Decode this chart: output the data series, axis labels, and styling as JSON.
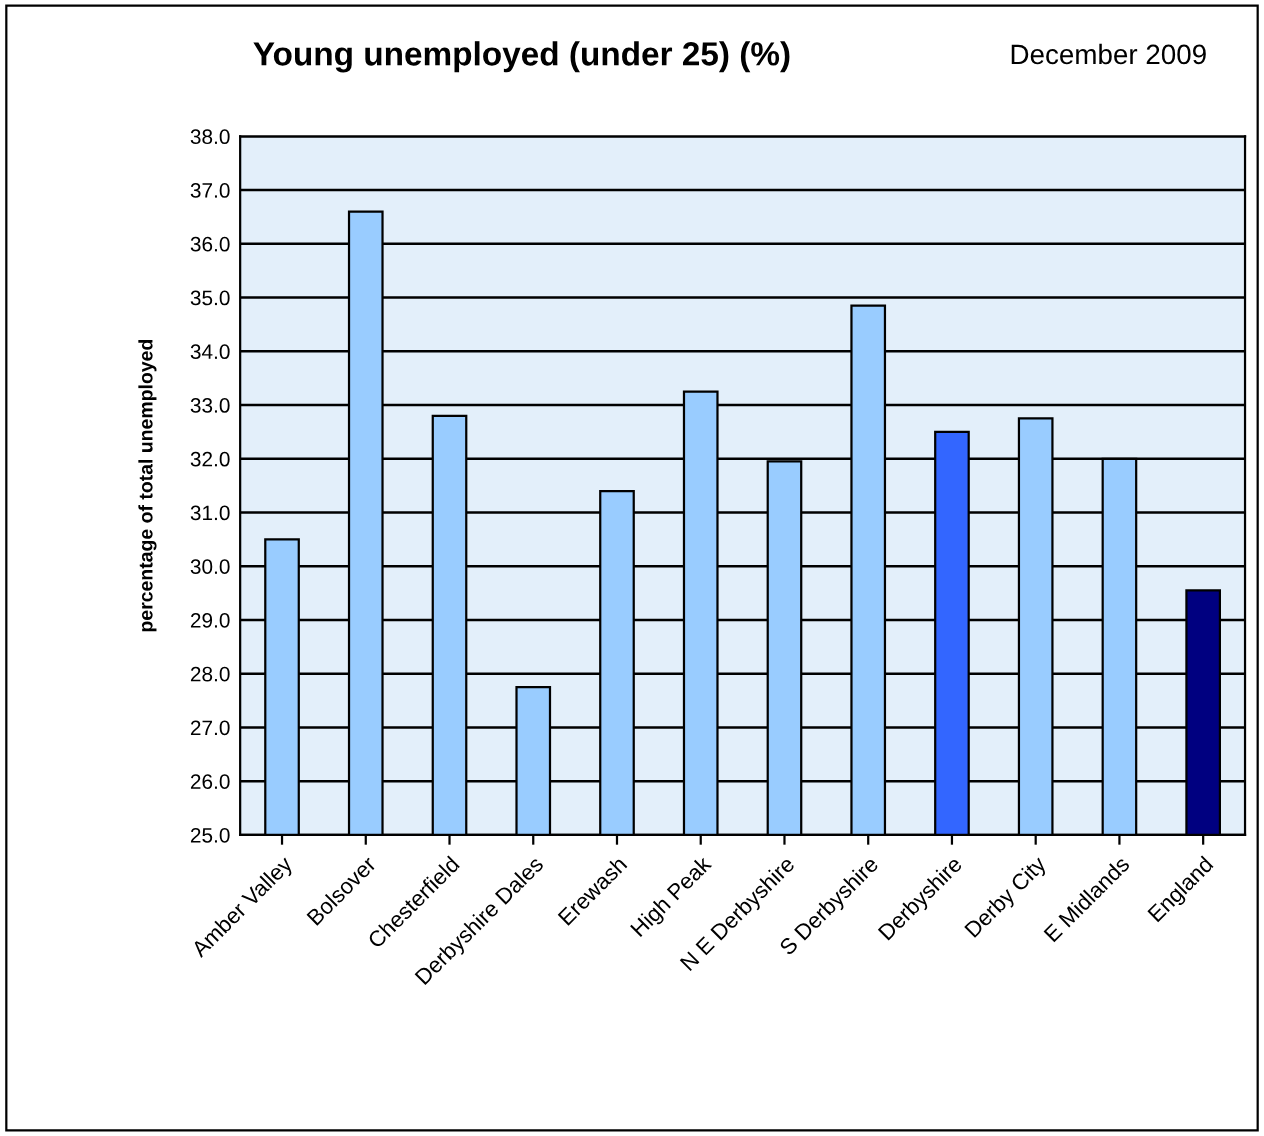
{
  "chart_data": {
    "type": "bar",
    "title": "Young unemployed (under 25) (%)",
    "subtitle": "December 2009",
    "ylabel": "percentage of total unemployed",
    "categories": [
      "Amber Valley",
      "Bolsover",
      "Chesterfield",
      "Derbyshire Dales",
      "Erewash",
      "High Peak",
      "N E Derbyshire",
      "S Derbyshire",
      "Derbyshire",
      "Derby City",
      "E Midlands",
      "England"
    ],
    "values": [
      30.5,
      36.6,
      32.8,
      27.75,
      31.4,
      33.25,
      31.95,
      34.85,
      32.5,
      32.75,
      32.0,
      29.55
    ],
    "colors": [
      "#99ccff",
      "#99ccff",
      "#99ccff",
      "#99ccff",
      "#99ccff",
      "#99ccff",
      "#99ccff",
      "#99ccff",
      "#3366ff",
      "#99ccff",
      "#99ccff",
      "#000080"
    ],
    "ylim": [
      25,
      38
    ],
    "yticks": [
      {
        "value": 25,
        "label": "25.0"
      },
      {
        "value": 26,
        "label": "26.0"
      },
      {
        "value": 27,
        "label": "27.0"
      },
      {
        "value": 28,
        "label": "28.0"
      },
      {
        "value": 29,
        "label": "29.0"
      },
      {
        "value": 30,
        "label": "30.0"
      },
      {
        "value": 31,
        "label": "31.0"
      },
      {
        "value": 32,
        "label": "32.0"
      },
      {
        "value": 33,
        "label": "33.0"
      },
      {
        "value": 34,
        "label": "34.0"
      },
      {
        "value": 35,
        "label": "35.0"
      },
      {
        "value": 36,
        "label": "36.0"
      },
      {
        "value": 37,
        "label": "37.0"
      },
      {
        "value": 38,
        "label": "38.0"
      }
    ],
    "grid": "y"
  }
}
